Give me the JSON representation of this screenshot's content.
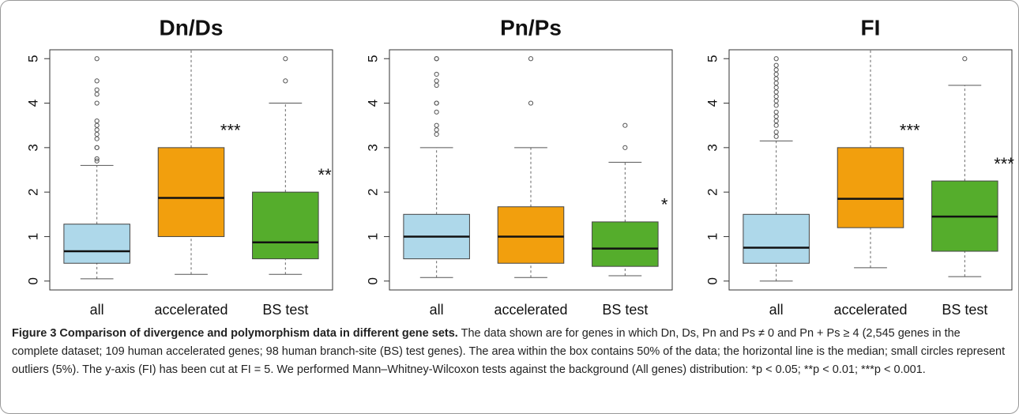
{
  "chart_data": [
    {
      "type": "box",
      "title": "Dn/Ds",
      "categories": [
        "all",
        "accelerated",
        "BS test"
      ],
      "ylim": [
        -0.2,
        5.2
      ],
      "yticks": [
        0,
        1,
        2,
        3,
        4,
        5
      ],
      "boxes": [
        {
          "color": "#aed8ea",
          "whisker_low": 0.05,
          "q1": 0.4,
          "median": 0.67,
          "q3": 1.28,
          "whisker_high": 2.6,
          "outliers": [
            2.7,
            2.75,
            3.0,
            3.0,
            3.2,
            3.3,
            3.4,
            3.5,
            3.6,
            4.0,
            4.2,
            4.3,
            4.5,
            5.0
          ]
        },
        {
          "color": "#f29f0d",
          "whisker_low": 0.15,
          "q1": 1.0,
          "median": 1.87,
          "q3": 3.0,
          "whisker_high": 5.2,
          "outliers": [],
          "annotation": "***"
        },
        {
          "color": "#55ad2c",
          "whisker_low": 0.15,
          "q1": 0.5,
          "median": 0.87,
          "q3": 2.0,
          "whisker_high": 4.0,
          "outliers": [
            4.5,
            5.0
          ],
          "annotation": "**"
        }
      ]
    },
    {
      "type": "box",
      "title": "Pn/Ps",
      "categories": [
        "all",
        "accelerated",
        "BS test"
      ],
      "ylim": [
        -0.2,
        5.2
      ],
      "yticks": [
        0,
        1,
        2,
        3,
        4,
        5
      ],
      "boxes": [
        {
          "color": "#aed8ea",
          "whisker_low": 0.08,
          "q1": 0.5,
          "median": 1.0,
          "q3": 1.5,
          "whisker_high": 3.0,
          "outliers": [
            3.3,
            3.4,
            3.5,
            3.8,
            4.0,
            4.0,
            4.4,
            4.5,
            4.65,
            5.0,
            5.0
          ]
        },
        {
          "color": "#f29f0d",
          "whisker_low": 0.08,
          "q1": 0.4,
          "median": 1.0,
          "q3": 1.67,
          "whisker_high": 3.0,
          "outliers": [
            4.0,
            5.0
          ]
        },
        {
          "color": "#55ad2c",
          "whisker_low": 0.12,
          "q1": 0.33,
          "median": 0.73,
          "q3": 1.33,
          "whisker_high": 2.67,
          "outliers": [
            3.0,
            3.5
          ],
          "annotation": "*"
        }
      ]
    },
    {
      "type": "box",
      "title": "FI",
      "categories": [
        "all",
        "accelerated",
        "BS test"
      ],
      "ylim": [
        -0.2,
        5.2
      ],
      "yticks": [
        0,
        1,
        2,
        3,
        4,
        5
      ],
      "boxes": [
        {
          "color": "#aed8ea",
          "whisker_low": 0.0,
          "q1": 0.4,
          "median": 0.75,
          "q3": 1.5,
          "whisker_high": 3.15,
          "outliers": [
            3.25,
            3.35,
            3.5,
            3.6,
            3.7,
            3.8,
            3.95,
            4.05,
            4.15,
            4.25,
            4.35,
            4.45,
            4.55,
            4.65,
            4.75,
            4.85,
            5.0
          ]
        },
        {
          "color": "#f29f0d",
          "whisker_low": 0.3,
          "q1": 1.2,
          "median": 1.85,
          "q3": 3.0,
          "whisker_high": 5.2,
          "outliers": [],
          "annotation": "***"
        },
        {
          "color": "#55ad2c",
          "whisker_low": 0.1,
          "q1": 0.67,
          "median": 1.45,
          "q3": 2.25,
          "whisker_high": 4.4,
          "outliers": [
            5.0
          ],
          "annotation": "***"
        }
      ]
    }
  ],
  "caption": {
    "title": "Figure 3 Comparison of divergence and polymorphism data in different gene sets.",
    "text": "The data shown are for genes in which Dn, Ds, Pn and Ps ≠ 0 and Pn + Ps ≥ 4 (2,545 genes in the complete dataset; 109 human accelerated genes; 98 human branch-site (BS) test genes). The area within the box contains 50% of the data; the horizontal line is the median; small circles represent outliers (5%). The y-axis (FI) has been cut at FI = 5. We performed Mann–Whitney-Wilcoxon tests against the background (All genes) distribution: *p < 0.05; **p < 0.01; ***p < 0.001."
  }
}
